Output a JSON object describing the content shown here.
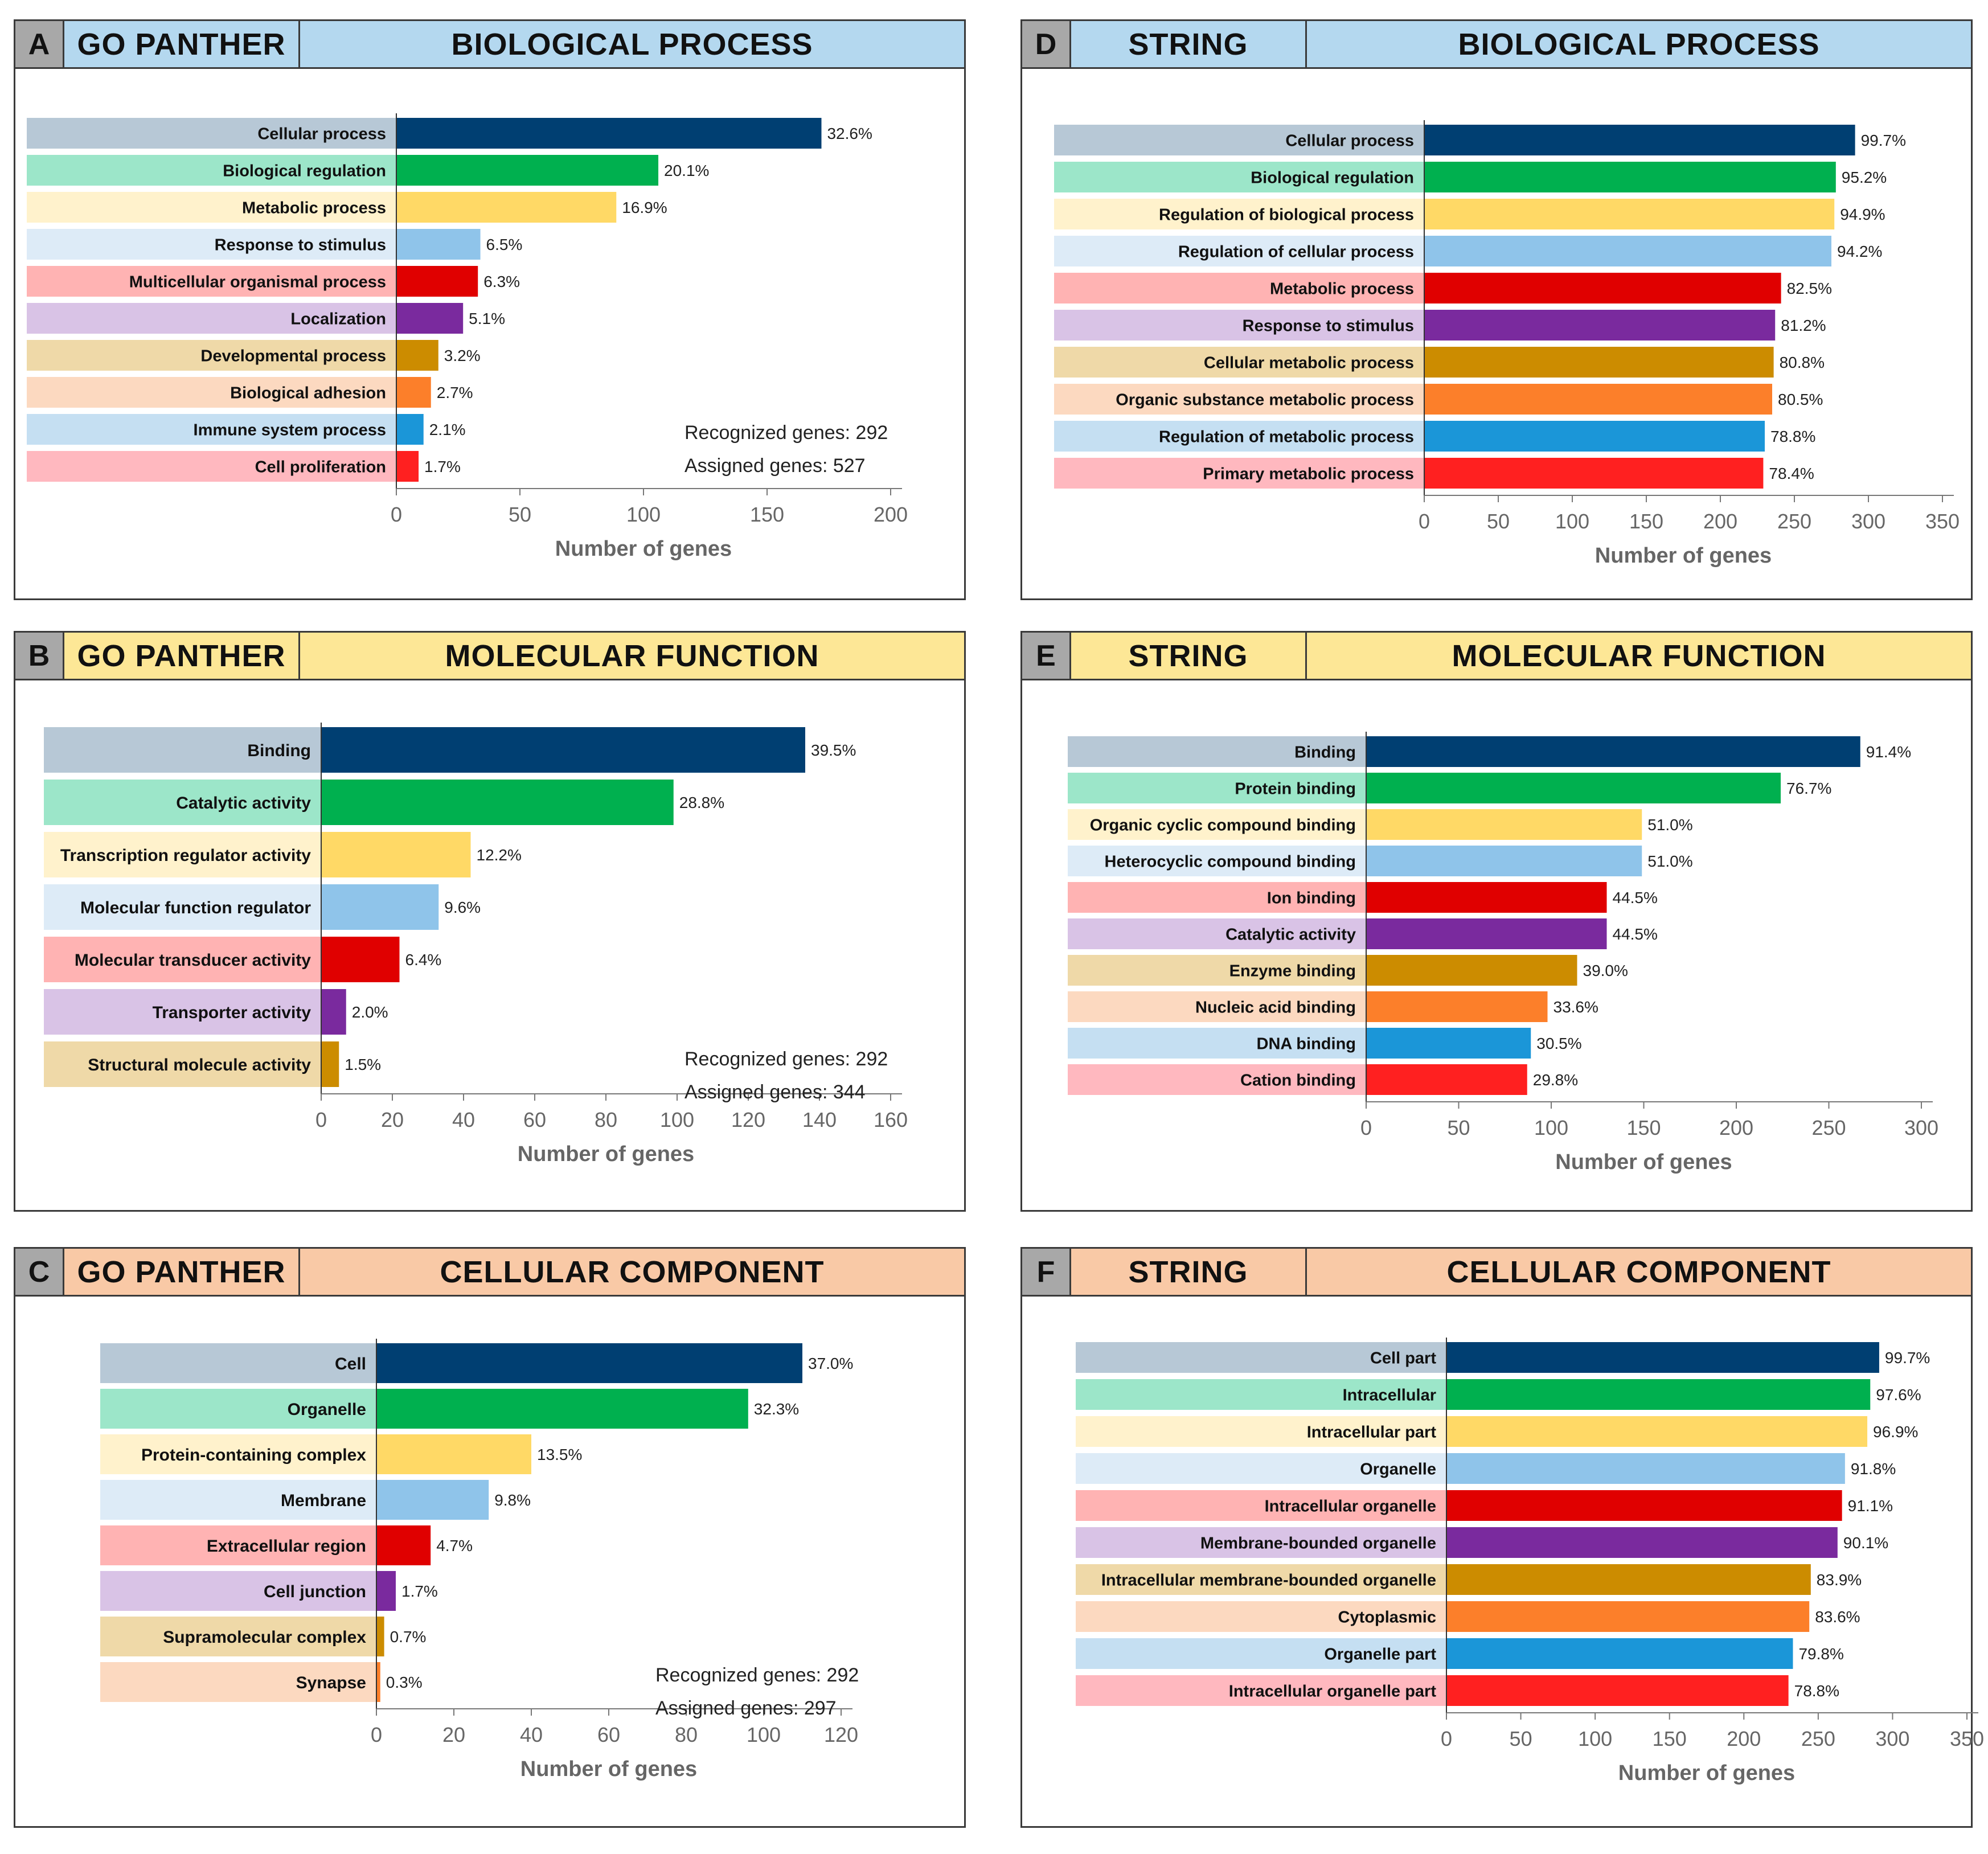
{
  "colors": {
    "bars": [
      "#003f72",
      "#00b04f",
      "#ffd966",
      "#8fc4ea",
      "#e00000",
      "#7a2a9e",
      "#cc8c00",
      "#fc7f2a",
      "#1b96d8",
      "#ff2020"
    ],
    "stripes": [
      "#b7c8d6",
      "#9ce6c9",
      "#fff2cc",
      "#ddebf7",
      "#ffb3b3",
      "#d9c3e6",
      "#efd9a8",
      "#fcd9c0",
      "#c5dff2",
      "#ffb8bf"
    ],
    "bp": "#b4d8ef",
    "mf": "#fde796",
    "cc": "#f9c9a6"
  },
  "chart_data": [
    {
      "id": "A",
      "letter": "A",
      "tool": "GO PANTHER",
      "category": "BIOLOGICAL PROCESS",
      "type": "bar",
      "orientation": "horizontal",
      "categories": [
        "Cellular process",
        "Biological regulation",
        "Metabolic process",
        "Response to stimulus",
        "Multicellular organismal process",
        "Localization",
        "Developmental process",
        "Biological adhesion",
        "Immune system process",
        "Cell proliferation"
      ],
      "values": [
        172,
        106,
        89,
        34,
        33,
        27,
        17,
        14,
        11,
        9
      ],
      "labels": [
        "32.6%",
        "20.1%",
        "16.9%",
        "6.5%",
        "6.3%",
        "5.1%",
        "3.2%",
        "2.7%",
        "2.1%",
        "1.7%"
      ],
      "xlim": [
        0,
        200
      ],
      "xticks": [
        "0",
        "50",
        "100",
        "150",
        "200"
      ],
      "xlabel": "Number of genes",
      "notes": [
        "Recognized genes: 292",
        "Assigned genes: 527"
      ]
    },
    {
      "id": "B",
      "letter": "B",
      "tool": "GO PANTHER",
      "category": "MOLECULAR FUNCTION",
      "type": "bar",
      "orientation": "horizontal",
      "categories": [
        "Binding",
        "Catalytic activity",
        "Transcription regulator activity",
        "Molecular function regulator",
        "Molecular transducer activity",
        "Transporter activity",
        "Structural molecule activity"
      ],
      "values": [
        136,
        99,
        42,
        33,
        22,
        7,
        5
      ],
      "labels": [
        "39.5%",
        "28.8%",
        "12.2%",
        "9.6%",
        "6.4%",
        "2.0%",
        "1.5%"
      ],
      "xlim": [
        0,
        160
      ],
      "xticks": [
        "0",
        "20",
        "40",
        "60",
        "80",
        "100",
        "120",
        "140",
        "160"
      ],
      "xlabel": "Number of genes",
      "notes": [
        "Recognized genes: 292",
        "Assigned genes: 344"
      ]
    },
    {
      "id": "C",
      "letter": "C",
      "tool": "GO PANTHER",
      "category": "CELLULAR COMPONENT",
      "type": "bar",
      "orientation": "horizontal",
      "categories": [
        "Cell",
        "Organelle",
        "Protein-containing complex",
        "Membrane",
        "Extracellular region",
        "Cell junction",
        "Supramolecular complex",
        "Synapse"
      ],
      "values": [
        110,
        96,
        40,
        29,
        14,
        5,
        2,
        1
      ],
      "labels": [
        "37.0%",
        "32.3%",
        "13.5%",
        "9.8%",
        "4.7%",
        "1.7%",
        "0.7%",
        "0.3%"
      ],
      "xlim": [
        0,
        120
      ],
      "xticks": [
        "0",
        "20",
        "40",
        "60",
        "80",
        "100",
        "120"
      ],
      "xlabel": "Number of genes",
      "notes": [
        "Recognized genes: 292",
        "Assigned genes: 297"
      ]
    },
    {
      "id": "D",
      "letter": "D",
      "tool": "STRING",
      "category": "BIOLOGICAL PROCESS",
      "type": "bar",
      "orientation": "horizontal",
      "categories": [
        "Cellular process",
        "Biological regulation",
        "Regulation of biological process",
        "Regulation of cellular process",
        "Metabolic process",
        "Response to stimulus",
        "Cellular metabolic process",
        "Organic substance metabolic process",
        "Regulation of metabolic process",
        "Primary metabolic process"
      ],
      "values": [
        291,
        278,
        277,
        275,
        241,
        237,
        236,
        235,
        230,
        229
      ],
      "labels": [
        "99.7%",
        "95.2%",
        "94.9%",
        "94.2%",
        "82.5%",
        "81.2%",
        "80.8%",
        "80.5%",
        "78.8%",
        "78.4%"
      ],
      "xlim": [
        0,
        350
      ],
      "xticks": [
        "0",
        "50",
        "100",
        "150",
        "200",
        "250",
        "300",
        "350"
      ],
      "xlabel": "Number of genes",
      "notes": []
    },
    {
      "id": "E",
      "letter": "E",
      "tool": "STRING",
      "category": "MOLECULAR FUNCTION",
      "type": "bar",
      "orientation": "horizontal",
      "categories": [
        "Binding",
        "Protein binding",
        "Organic cyclic compound binding",
        "Heterocyclic compound binding",
        "Ion binding",
        "Catalytic activity",
        "Enzyme binding",
        "Nucleic acid binding",
        "DNA binding",
        "Cation binding"
      ],
      "values": [
        267,
        224,
        149,
        149,
        130,
        130,
        114,
        98,
        89,
        87
      ],
      "labels": [
        "91.4%",
        "76.7%",
        "51.0%",
        "51.0%",
        "44.5%",
        "44.5%",
        "39.0%",
        "33.6%",
        "30.5%",
        "29.8%"
      ],
      "xlim": [
        0,
        300
      ],
      "xticks": [
        "0",
        "50",
        "100",
        "150",
        "200",
        "250",
        "300"
      ],
      "xlabel": "Number of genes",
      "notes": []
    },
    {
      "id": "F",
      "letter": "F",
      "tool": "STRING",
      "category": "CELLULAR COMPONENT",
      "type": "bar",
      "orientation": "horizontal",
      "categories": [
        "Cell part",
        "Intracellular",
        "Intracellular part",
        "Organelle",
        "Intracellular organelle",
        "Membrane-bounded organelle",
        "Intracellular membrane-bounded organelle",
        "Cytoplasmic",
        "Organelle part",
        "Intracellular organelle part"
      ],
      "values": [
        291,
        285,
        283,
        268,
        266,
        263,
        245,
        244,
        233,
        230
      ],
      "labels": [
        "99.7%",
        "97.6%",
        "96.9%",
        "91.8%",
        "91.1%",
        "90.1%",
        "83.9%",
        "83.6%",
        "79.8%",
        "78.8%"
      ],
      "xlim": [
        0,
        350
      ],
      "xticks": [
        "0",
        "50",
        "100",
        "150",
        "200",
        "250",
        "300",
        "350"
      ],
      "xlabel": "Number of genes",
      "notes": []
    }
  ]
}
